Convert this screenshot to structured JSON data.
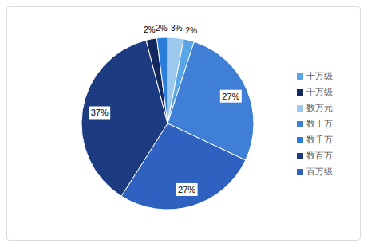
{
  "chart_data": {
    "type": "pie",
    "categories": [
      "数万元",
      "十万级",
      "数十万",
      "百万级",
      "数百万",
      "千万级",
      "数千万"
    ],
    "values": [
      3,
      2,
      27,
      27,
      37,
      2,
      2
    ],
    "value_labels": [
      "3%",
      "2%",
      "27%",
      "27%",
      "37%",
      "2%",
      "2%"
    ],
    "colors": [
      "#9cc8ee",
      "#5aa5e6",
      "#3f7fd6",
      "#2f62c0",
      "#1d3b80",
      "#13285c",
      "#2b7ddb"
    ],
    "data_labels": true,
    "legend": "right"
  }
}
